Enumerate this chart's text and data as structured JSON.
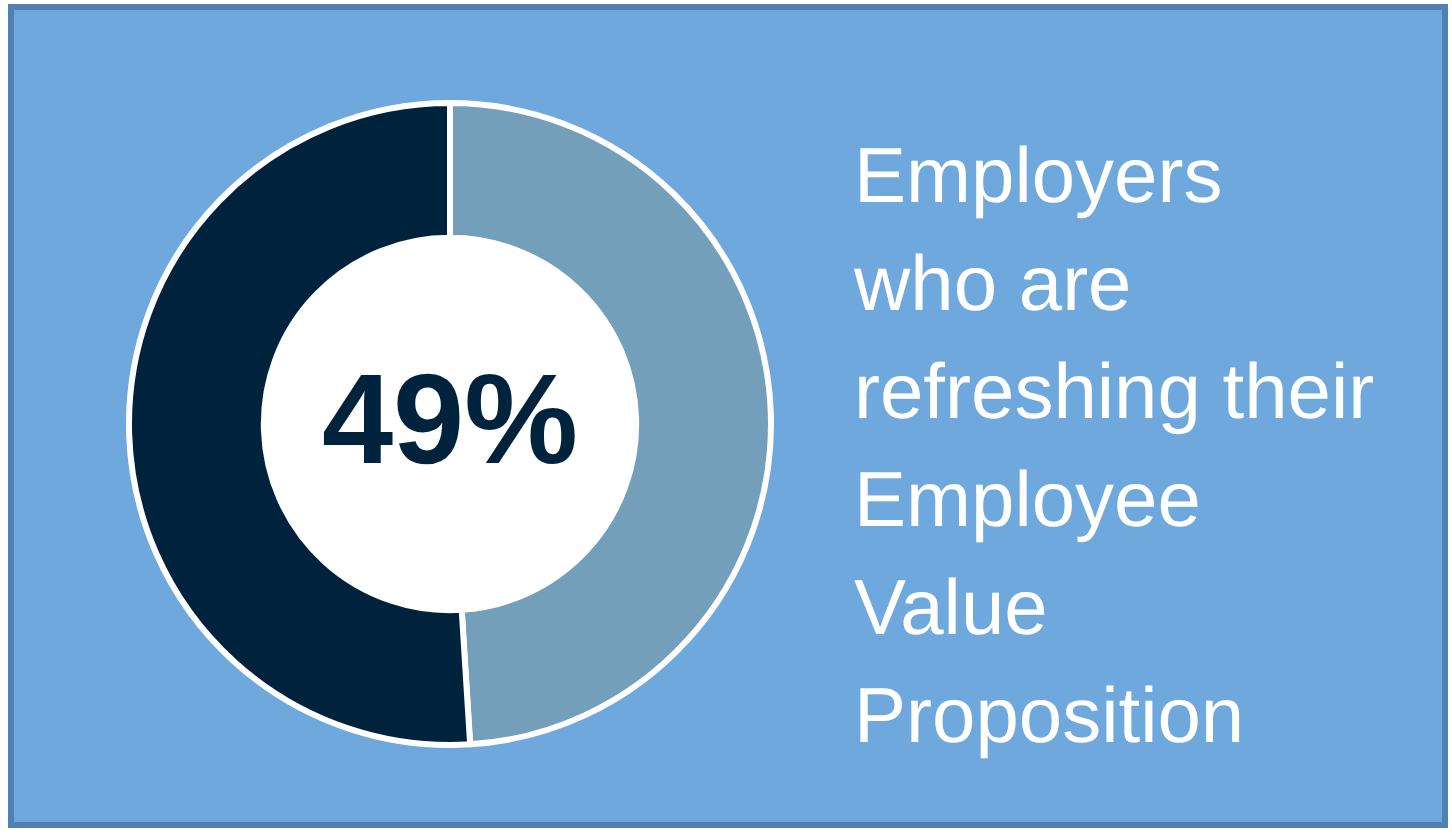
{
  "chart_data": {
    "type": "donut",
    "title": "Employers\nwho are\nrefreshing their\nEmployee\nValue\nProposition",
    "categories": [
      null,
      null
    ],
    "values": [
      49,
      51
    ],
    "colors": [
      "#739fbb",
      "#00233d"
    ],
    "value_labels": [
      "49%",
      null
    ]
  }
}
